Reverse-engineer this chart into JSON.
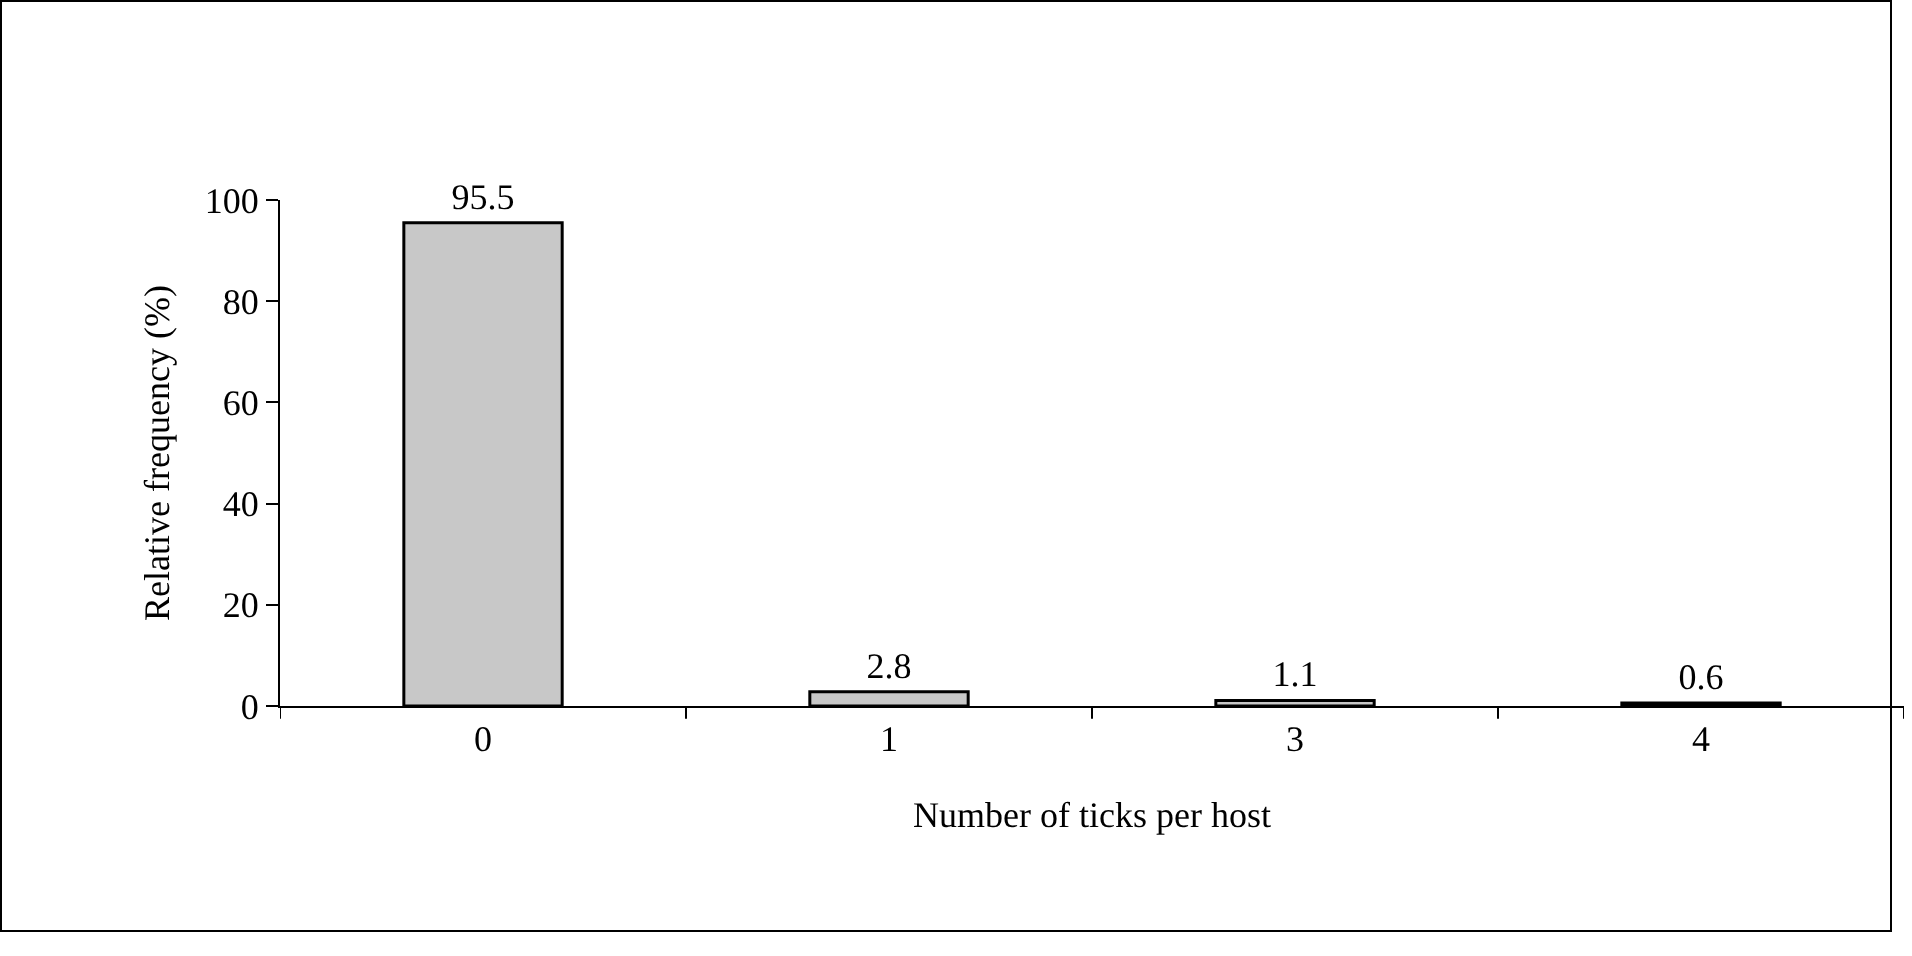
{
  "chart_data": {
    "type": "bar",
    "xlabel": "Number of ticks per host",
    "ylabel": "Relative frequency (%)",
    "categories": [
      "0",
      "1",
      "3",
      "4"
    ],
    "values": [
      95.5,
      2.8,
      1.1,
      0.6
    ],
    "color": "#c8c8c8",
    "ylim": [
      0,
      100
    ],
    "yticks": [
      0,
      20,
      40,
      60,
      80,
      100
    ],
    "grid": false,
    "data_labels": true,
    "legend": false
  }
}
